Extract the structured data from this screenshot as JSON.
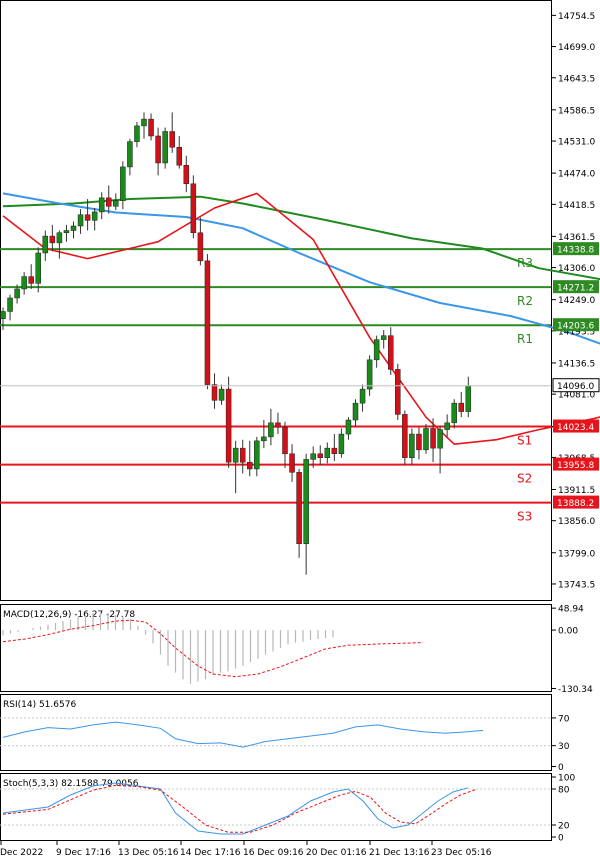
{
  "chart_data": {
    "type": "candlestick",
    "main": {
      "ylim": [
        13715,
        14780
      ],
      "ticks": [
        "14754.5",
        "14699.0",
        "14643.5",
        "14586.5",
        "14531.0",
        "14474.0",
        "14418.5",
        "14361.5",
        "14306.0",
        "14249.0",
        "14193.5",
        "14136.5",
        "14081.0",
        "14023.5",
        "13968.5",
        "13911.5",
        "13856.0",
        "13799.0",
        "13743.5"
      ],
      "current_price": "14096.0",
      "levels": [
        {
          "name": "R3",
          "value": 14338.8,
          "label": "14338.8",
          "color": "#2e8b22"
        },
        {
          "name": "R2",
          "value": 14271.2,
          "label": "14271.2",
          "color": "#2e8b22"
        },
        {
          "name": "R1",
          "value": 14203.6,
          "label": "14203.6",
          "color": "#2e8b22"
        },
        {
          "name": "S1",
          "value": 14023.4,
          "label": "14023.4",
          "color": "#e8141c"
        },
        {
          "name": "S2",
          "value": 13955.8,
          "label": "13955.8",
          "color": "#e8141c"
        },
        {
          "name": "S3",
          "value": 13888.2,
          "label": "13888.2",
          "color": "#e8141c"
        }
      ],
      "candles": [
        [
          14215,
          14235,
          14195,
          14228
        ],
        [
          14228,
          14258,
          14212,
          14252
        ],
        [
          14252,
          14276,
          14242,
          14268
        ],
        [
          14268,
          14298,
          14258,
          14290
        ],
        [
          14290,
          14312,
          14268,
          14278
        ],
        [
          14278,
          14342,
          14262,
          14332
        ],
        [
          14332,
          14372,
          14318,
          14362
        ],
        [
          14362,
          14382,
          14335,
          14350
        ],
        [
          14350,
          14372,
          14322,
          14368
        ],
        [
          14368,
          14382,
          14352,
          14372
        ],
        [
          14372,
          14388,
          14358,
          14380
        ],
        [
          14380,
          14410,
          14366,
          14400
        ],
        [
          14400,
          14428,
          14372,
          14390
        ],
        [
          14390,
          14412,
          14372,
          14405
        ],
        [
          14405,
          14440,
          14392,
          14430
        ],
        [
          14430,
          14452,
          14402,
          14415
        ],
        [
          14415,
          14438,
          14408,
          14425
        ],
        [
          14425,
          14495,
          14410,
          14485
        ],
        [
          14485,
          14535,
          14470,
          14530
        ],
        [
          14530,
          14565,
          14520,
          14558
        ],
        [
          14558,
          14582,
          14535,
          14570
        ],
        [
          14570,
          14580,
          14532,
          14540
        ],
        [
          14540,
          14555,
          14470,
          14492
        ],
        [
          14492,
          14555,
          14482,
          14548
        ],
        [
          14548,
          14582,
          14510,
          14520
        ],
        [
          14520,
          14540,
          14482,
          14488
        ],
        [
          14488,
          14505,
          14440,
          14455
        ],
        [
          14455,
          14470,
          14358,
          14368
        ],
        [
          14368,
          14395,
          14310,
          14318
        ],
        [
          14318,
          14330,
          14090,
          14098
        ],
        [
          14098,
          14118,
          14055,
          14070
        ],
        [
          14070,
          14098,
          14062,
          14090
        ],
        [
          14090,
          14112,
          13950,
          13960
        ],
        [
          13960,
          13998,
          13905,
          13985
        ],
        [
          13985,
          14000,
          13940,
          13960
        ],
        [
          13960,
          13998,
          13935,
          13948
        ],
        [
          13948,
          14005,
          13935,
          13998
        ],
        [
          13998,
          14035,
          13985,
          14005
        ],
        [
          14005,
          14055,
          13990,
          14030
        ],
        [
          14030,
          14048,
          14010,
          14022
        ],
        [
          14022,
          14032,
          13950,
          13975
        ],
        [
          13975,
          13992,
          13925,
          13942
        ],
        [
          13942,
          13948,
          13790,
          13815
        ],
        [
          13815,
          13975,
          13760,
          13965
        ],
        [
          13965,
          13988,
          13950,
          13975
        ],
        [
          13975,
          13990,
          13955,
          13968
        ],
        [
          13968,
          13995,
          13958,
          13985
        ],
        [
          13985,
          14010,
          13962,
          13975
        ],
        [
          13975,
          14020,
          13968,
          14010
        ],
        [
          14010,
          14040,
          14000,
          14035
        ],
        [
          14035,
          14072,
          14022,
          14065
        ],
        [
          14065,
          14098,
          14050,
          14090
        ],
        [
          14090,
          14150,
          14078,
          14142
        ],
        [
          14142,
          14185,
          14128,
          14178
        ],
        [
          14178,
          14195,
          14162,
          14185
        ],
        [
          14185,
          14200,
          14115,
          14125
        ],
        [
          14125,
          14135,
          14035,
          14045
        ],
        [
          14045,
          14052,
          13955,
          13968
        ],
        [
          13968,
          14020,
          13955,
          14010
        ],
        [
          14010,
          14022,
          13965,
          13982
        ],
        [
          13982,
          14028,
          13975,
          14020
        ],
        [
          14020,
          14038,
          13960,
          13985
        ],
        [
          13985,
          14025,
          13940,
          14018
        ],
        [
          14018,
          14045,
          14005,
          14030
        ],
        [
          14030,
          14072,
          14020,
          14065
        ],
        [
          14065,
          14085,
          14040,
          14050
        ],
        [
          14050,
          14112,
          14040,
          14096
        ]
      ],
      "ma_blue": [
        [
          0,
          14438
        ],
        [
          8,
          14420
        ],
        [
          16,
          14404
        ],
        [
          26,
          14396
        ],
        [
          34,
          14376
        ],
        [
          42,
          14332
        ],
        [
          52,
          14280
        ],
        [
          62,
          14243
        ],
        [
          72,
          14220
        ],
        [
          80,
          14192
        ],
        [
          86,
          14165
        ]
      ],
      "ma_green": [
        [
          0,
          14415
        ],
        [
          10,
          14420
        ],
        [
          18,
          14428
        ],
        [
          28,
          14432
        ],
        [
          34,
          14420
        ],
        [
          46,
          14390
        ],
        [
          58,
          14358
        ],
        [
          68,
          14340
        ],
        [
          76,
          14305
        ],
        [
          88,
          14278
        ]
      ],
      "ma_red": [
        [
          0,
          14398
        ],
        [
          6,
          14340
        ],
        [
          12,
          14322
        ],
        [
          22,
          14352
        ],
        [
          30,
          14412
        ],
        [
          36,
          14438
        ],
        [
          44,
          14356
        ],
        [
          52,
          14182
        ],
        [
          60,
          14040
        ],
        [
          64,
          13992
        ],
        [
          70,
          14000
        ],
        [
          76,
          14018
        ],
        [
          84,
          14038
        ],
        [
          88,
          14052
        ]
      ]
    },
    "macd": {
      "label": "MACD(12,26,9) -16.27 -27.78",
      "ticks": [
        "48.94",
        "0.00",
        "-130.34"
      ],
      "ylim": [
        -136,
        56
      ],
      "hist": [
        [
          0,
          -12
        ],
        [
          2,
          -8
        ],
        [
          4,
          -4
        ],
        [
          6,
          0
        ],
        [
          8,
          4
        ],
        [
          10,
          8
        ],
        [
          12,
          12
        ],
        [
          14,
          16
        ],
        [
          16,
          20
        ],
        [
          18,
          24
        ],
        [
          20,
          30
        ],
        [
          22,
          34
        ],
        [
          24,
          38
        ],
        [
          26,
          40
        ],
        [
          28,
          38
        ],
        [
          30,
          34
        ],
        [
          32,
          30
        ],
        [
          34,
          26
        ],
        [
          36,
          10
        ],
        [
          38,
          -10
        ],
        [
          40,
          -30
        ],
        [
          42,
          -55
        ],
        [
          44,
          -80
        ],
        [
          46,
          -95
        ],
        [
          48,
          -110
        ],
        [
          50,
          -120
        ],
        [
          52,
          -115
        ],
        [
          54,
          -110
        ],
        [
          56,
          -100
        ],
        [
          58,
          -95
        ],
        [
          60,
          -92
        ],
        [
          62,
          -86
        ],
        [
          64,
          -80
        ],
        [
          66,
          -72
        ],
        [
          68,
          -64
        ],
        [
          70,
          -55
        ],
        [
          72,
          -48
        ],
        [
          74,
          -40
        ],
        [
          76,
          -32
        ],
        [
          78,
          -28
        ],
        [
          80,
          -26
        ],
        [
          82,
          -22
        ],
        [
          84,
          -20
        ],
        [
          86,
          -18
        ],
        [
          88,
          -16
        ]
      ],
      "signal": [
        [
          0,
          -26
        ],
        [
          6,
          -20
        ],
        [
          12,
          -10
        ],
        [
          18,
          2
        ],
        [
          24,
          10
        ],
        [
          30,
          20
        ],
        [
          34,
          22
        ],
        [
          38,
          18
        ],
        [
          42,
          -8
        ],
        [
          46,
          -40
        ],
        [
          52,
          -80
        ],
        [
          56,
          -98
        ],
        [
          62,
          -104
        ],
        [
          68,
          -98
        ],
        [
          74,
          -82
        ],
        [
          80,
          -62
        ],
        [
          86,
          -42
        ],
        [
          92,
          -34
        ],
        [
          100,
          -31
        ],
        [
          112,
          -28
        ]
      ]
    },
    "rsi": {
      "label": "RSI(14) 51.6576",
      "ticks": [
        "70",
        "30",
        "0"
      ],
      "ylim": [
        -5,
        103
      ],
      "line": [
        [
          0,
          42
        ],
        [
          6,
          50
        ],
        [
          12,
          56
        ],
        [
          18,
          54
        ],
        [
          24,
          60
        ],
        [
          30,
          64
        ],
        [
          36,
          60
        ],
        [
          42,
          55
        ],
        [
          46,
          40
        ],
        [
          52,
          33
        ],
        [
          58,
          34
        ],
        [
          64,
          28
        ],
        [
          70,
          36
        ],
        [
          76,
          40
        ],
        [
          82,
          44
        ],
        [
          88,
          48
        ],
        [
          94,
          57
        ],
        [
          100,
          60
        ],
        [
          106,
          54
        ],
        [
          112,
          50
        ],
        [
          118,
          48
        ],
        [
          124,
          50
        ],
        [
          128,
          52
        ]
      ]
    },
    "stoch": {
      "label": "Stoch(5,3,3) 82.1588 79.0056",
      "ticks": [
        "100",
        "80",
        "20",
        "0"
      ],
      "ylim": [
        -5,
        105
      ],
      "main": [
        [
          0,
          40
        ],
        [
          6,
          45
        ],
        [
          12,
          50
        ],
        [
          18,
          70
        ],
        [
          24,
          85
        ],
        [
          30,
          90
        ],
        [
          36,
          85
        ],
        [
          42,
          80
        ],
        [
          46,
          40
        ],
        [
          52,
          10
        ],
        [
          58,
          5
        ],
        [
          64,
          5
        ],
        [
          70,
          20
        ],
        [
          76,
          35
        ],
        [
          82,
          60
        ],
        [
          88,
          75
        ],
        [
          92,
          80
        ],
        [
          96,
          60
        ],
        [
          100,
          30
        ],
        [
          104,
          15
        ],
        [
          108,
          20
        ],
        [
          112,
          40
        ],
        [
          116,
          60
        ],
        [
          120,
          75
        ],
        [
          124,
          82
        ]
      ],
      "signal": [
        [
          0,
          38
        ],
        [
          6,
          42
        ],
        [
          12,
          46
        ],
        [
          18,
          62
        ],
        [
          24,
          78
        ],
        [
          30,
          86
        ],
        [
          36,
          84
        ],
        [
          42,
          78
        ],
        [
          48,
          50
        ],
        [
          54,
          20
        ],
        [
          60,
          8
        ],
        [
          66,
          8
        ],
        [
          72,
          20
        ],
        [
          78,
          40
        ],
        [
          84,
          55
        ],
        [
          90,
          70
        ],
        [
          94,
          76
        ],
        [
          98,
          66
        ],
        [
          102,
          40
        ],
        [
          106,
          25
        ],
        [
          110,
          22
        ],
        [
          114,
          38
        ],
        [
          118,
          55
        ],
        [
          122,
          70
        ],
        [
          126,
          79
        ]
      ]
    },
    "x_labels": [
      "Dec 2022",
      "9 Dec 17:16",
      "13 Dec 05:16",
      "14 Dec 17:16",
      "16 Dec 09:16",
      "20 Dec 01:16",
      "21 Dec 13:16",
      "23 Dec 05:16"
    ]
  }
}
